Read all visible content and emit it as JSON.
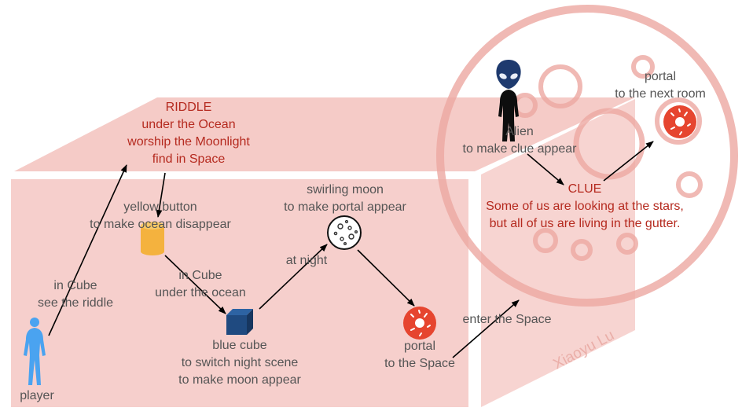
{
  "colors": {
    "box_fill": "#f6cfcc",
    "box_top_fill": "#f3c2bd",
    "circle_stroke": "#eca7a1",
    "text_gray": "#555555",
    "text_red": "#b52a1f",
    "player_blue": "#4aa3f0",
    "alien_navy": "#1e3a6e",
    "cube_blue": "#1f4a80",
    "cylinder_orange": "#f4b23e",
    "donut_red": "#e6452f"
  },
  "labels": {
    "riddle": [
      "RIDDLE",
      "under the Ocean",
      "worship the Moonlight",
      "find in Space"
    ],
    "yellow_button": [
      "yellow button",
      "to make ocean disappear"
    ],
    "in_cube_see": [
      "in Cube",
      "see the riddle"
    ],
    "in_cube_under": [
      "in Cube",
      "under the ocean"
    ],
    "swirling_moon": [
      "swirling moon",
      "to make portal appear"
    ],
    "at_night": "at night",
    "blue_cube": [
      "blue cube",
      "to switch night scene",
      "to make moon appear"
    ],
    "portal_space": [
      "portal",
      "to the Space"
    ],
    "enter_space": "enter the Space",
    "player": "player",
    "alien": [
      "Alien",
      "to make clue appear"
    ],
    "clue": [
      "CLUE",
      "Some of us are looking at the stars,",
      "but all of us are living in the gutter."
    ],
    "portal_next": [
      "portal",
      "to the next room"
    ],
    "watermark": "Xiaoyu Lu"
  },
  "icons": {
    "player": "player-figure-icon",
    "alien": "alien-figure-icon",
    "yellow_button": "cylinder-button-icon",
    "blue_cube": "cube-icon",
    "moon": "moon-icon",
    "portal": "donut-portal-icon"
  }
}
